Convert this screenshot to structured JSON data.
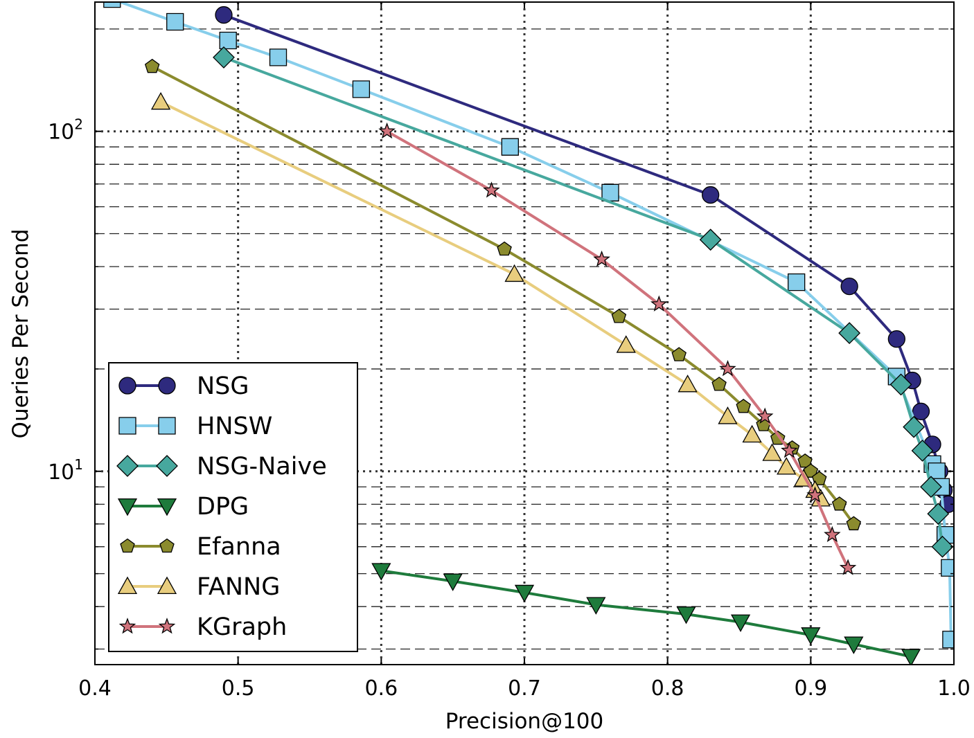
{
  "chart_data": {
    "type": "line",
    "title": "",
    "xlabel": "Precision@100",
    "ylabel": "Queries Per Second",
    "xscale": "linear",
    "yscale": "log",
    "xlim": [
      0.4,
      1.0
    ],
    "ylim": [
      2.7,
      240
    ],
    "xticks": [
      0.4,
      0.5,
      0.6,
      0.7,
      0.8,
      0.9,
      1.0
    ],
    "xtick_labels": [
      "0.4",
      "0.5",
      "0.6",
      "0.7",
      "0.8",
      "0.9",
      "1.0"
    ],
    "yticks": [
      {
        "value": 10,
        "base": "10",
        "exp": "1"
      },
      {
        "value": 100,
        "base": "10",
        "exp": "2"
      }
    ],
    "grid": true,
    "legend_position": "bottom-left",
    "series": [
      {
        "name": "NSG",
        "color": "#2e2a7e",
        "marker": "circle",
        "x": [
          0.49,
          0.83,
          0.927,
          0.96,
          0.971,
          0.977,
          0.985,
          0.99,
          0.993,
          0.996
        ],
        "y": [
          220,
          65,
          35,
          24.5,
          18.5,
          15,
          12,
          10,
          8.8,
          8
        ]
      },
      {
        "name": "HNSW",
        "color": "#87ceeb",
        "marker": "square",
        "x": [
          0.412,
          0.456,
          0.493,
          0.528,
          0.586,
          0.69,
          0.76,
          0.89,
          0.96,
          0.985,
          0.988,
          0.991,
          0.994,
          0.997,
          0.998
        ],
        "y": [
          245,
          210,
          185,
          165,
          133,
          90,
          66,
          36,
          19,
          10.5,
          10,
          9,
          6.5,
          5.2,
          3.2
        ]
      },
      {
        "name": "NSG-Naive",
        "color": "#47a89e",
        "marker": "diamond",
        "x": [
          0.49,
          0.83,
          0.927,
          0.963,
          0.972,
          0.978,
          0.984,
          0.989,
          0.992
        ],
        "y": [
          165,
          48,
          25.5,
          18,
          13.5,
          11.5,
          9,
          7.5,
          6
        ]
      },
      {
        "name": "DPG",
        "color": "#1e7b3c",
        "marker": "triangle-down",
        "x": [
          0.6,
          0.65,
          0.7,
          0.75,
          0.813,
          0.851,
          0.9,
          0.93,
          0.97
        ],
        "y": [
          5.1,
          4.75,
          4.4,
          4.05,
          3.8,
          3.6,
          3.3,
          3.1,
          2.85
        ]
      },
      {
        "name": "Efanna",
        "color": "#8b8b2e",
        "marker": "pentagon",
        "x": [
          0.44,
          0.686,
          0.766,
          0.808,
          0.836,
          0.853,
          0.867,
          0.877,
          0.887,
          0.896,
          0.9,
          0.906,
          0.92,
          0.93
        ],
        "y": [
          155,
          45,
          28.5,
          22,
          18,
          15.5,
          13.7,
          12.5,
          11.7,
          10.7,
          10,
          9.5,
          8,
          7
        ]
      },
      {
        "name": "FANNG",
        "color": "#e8cd7e",
        "marker": "triangle-up",
        "x": [
          0.446,
          0.693,
          0.771,
          0.814,
          0.842,
          0.859,
          0.873,
          0.883,
          0.895,
          0.903,
          0.907
        ],
        "y": [
          122,
          38,
          23.5,
          18,
          14.5,
          12.8,
          11.3,
          10.3,
          9.5,
          8.8,
          8.3
        ]
      },
      {
        "name": "KGraph",
        "color": "#d0737c",
        "marker": "star",
        "x": [
          0.604,
          0.677,
          0.754,
          0.794,
          0.842,
          0.868,
          0.885,
          0.903,
          0.915,
          0.926
        ],
        "y": [
          100,
          67,
          42,
          31,
          20,
          14.5,
          11.5,
          8.5,
          6.5,
          5.2
        ]
      }
    ]
  }
}
